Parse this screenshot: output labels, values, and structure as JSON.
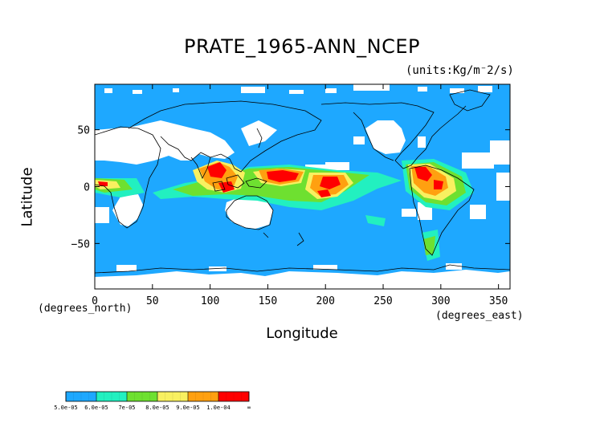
{
  "chart_data": {
    "type": "heatmap",
    "title": "PRATE_1965-ANN_NCEP",
    "units": "(units:Kg/m⁻2/s)",
    "xlabel": "Longitude",
    "ylabel": "Latitude",
    "x_units": "(degrees_east)",
    "y_units": "(degrees_north)",
    "xlim": [
      0,
      360
    ],
    "ylim": [
      -90,
      90
    ],
    "x_ticks": [
      "0",
      "50",
      "100",
      "150",
      "200",
      "250",
      "300",
      "350"
    ],
    "y_ticks": [
      "50",
      "0",
      "−50"
    ],
    "colorbar": {
      "levels": [
        "5.0e-05",
        "6.0e-05",
        "7e-05",
        "8.0e-05",
        "9.0e-05",
        "1.0e-04",
        "∞"
      ],
      "colors": [
        "#1ea8ff",
        "#22f0c0",
        "#6ee030",
        "#f8f060",
        "#ffa010",
        "#ff0000"
      ]
    }
  }
}
